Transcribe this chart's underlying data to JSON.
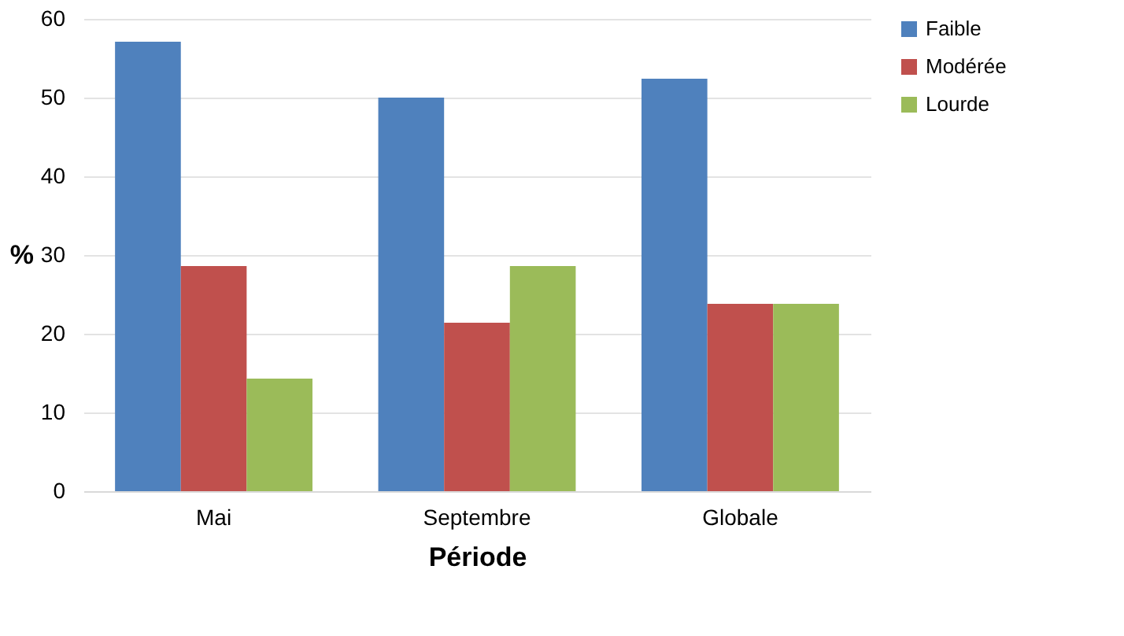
{
  "chart_data": {
    "type": "bar",
    "xlabel": "Période",
    "ylabel": "%",
    "categories": [
      "Mai",
      "Septembre",
      "Globale"
    ],
    "series": [
      {
        "name": "Faible",
        "color": "#4f81bd",
        "values": [
          57.1,
          50,
          52.4
        ]
      },
      {
        "name": "Modérée",
        "color": "#c0504d",
        "values": [
          28.6,
          21.4,
          23.8
        ]
      },
      {
        "name": "Lourde",
        "color": "#9bbb59",
        "values": [
          14.3,
          28.6,
          23.8
        ]
      }
    ],
    "ylim": [
      0,
      60
    ],
    "yticks": [
      0,
      10,
      20,
      30,
      40,
      50,
      60
    ],
    "grid": "y",
    "legend": "right"
  }
}
